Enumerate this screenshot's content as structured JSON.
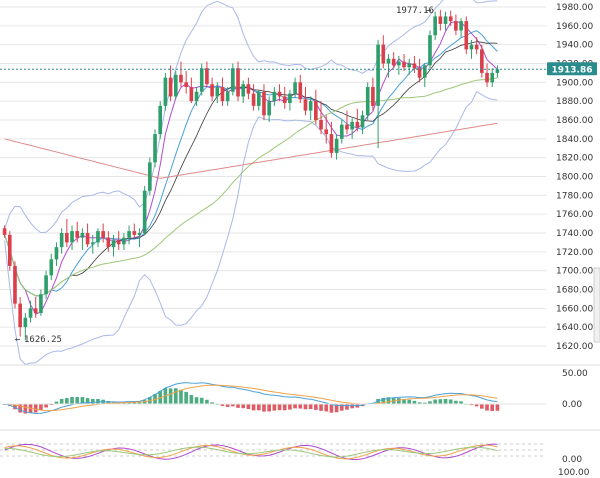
{
  "colors": {
    "up": "#2e9e6b",
    "down": "#d9404b",
    "bb": "#a9b8e8",
    "ma_fast": "#b04bd1",
    "ma_mid": "#4aa0d8",
    "ma_slow_green": "#9cc87a",
    "ma_slow_red": "#e08a8a",
    "price_line": "#2a8c8c",
    "grid": "#e6e6e6",
    "macd_line": "#4aa0d8",
    "signal_line": "#f0a24b",
    "osc_a": "#b04bd1",
    "osc_b": "#f0a24b",
    "osc_c": "#9cc87a"
  },
  "main_panel": {
    "current_price": "1913.86",
    "high_annotation": "1977.16",
    "low_annotation": "1626.25",
    "y_ticks": [
      "1980.00",
      "1960.00",
      "1940.00",
      "1920.00",
      "1900.00",
      "1880.00",
      "1860.00",
      "1840.00",
      "1820.00",
      "1800.00",
      "1780.00",
      "1760.00",
      "1740.00",
      "1720.00",
      "1700.00",
      "1680.00",
      "1660.00",
      "1640.00",
      "1620.00"
    ]
  },
  "macd_panel": {
    "y_ticks": [
      "50.00",
      "0.00"
    ]
  },
  "osc_panel": {
    "y_ticks": [
      "0.00",
      "100.00"
    ]
  },
  "chart_data": {
    "type": "candlestick",
    "ylim": [
      1610,
      1990
    ],
    "candles": [
      [
        1745,
        1748,
        1735,
        1738
      ],
      [
        1738,
        1742,
        1700,
        1705
      ],
      [
        1705,
        1710,
        1660,
        1665
      ],
      [
        1665,
        1672,
        1630,
        1640
      ],
      [
        1640,
        1655,
        1626,
        1650
      ],
      [
        1650,
        1668,
        1645,
        1660
      ],
      [
        1660,
        1672,
        1650,
        1655
      ],
      [
        1655,
        1680,
        1652,
        1675
      ],
      [
        1675,
        1700,
        1670,
        1695
      ],
      [
        1695,
        1718,
        1690,
        1712
      ],
      [
        1712,
        1730,
        1705,
        1725
      ],
      [
        1725,
        1745,
        1718,
        1740
      ],
      [
        1740,
        1755,
        1725,
        1730
      ],
      [
        1730,
        1748,
        1722,
        1742
      ],
      [
        1742,
        1752,
        1730,
        1735
      ],
      [
        1735,
        1745,
        1722,
        1740
      ],
      [
        1740,
        1750,
        1725,
        1728
      ],
      [
        1728,
        1738,
        1718,
        1730
      ],
      [
        1730,
        1745,
        1725,
        1742
      ],
      [
        1742,
        1750,
        1730,
        1735
      ],
      [
        1735,
        1742,
        1720,
        1725
      ],
      [
        1725,
        1738,
        1715,
        1732
      ],
      [
        1732,
        1742,
        1722,
        1728
      ],
      [
        1728,
        1740,
        1722,
        1735
      ],
      [
        1735,
        1748,
        1728,
        1742
      ],
      [
        1742,
        1750,
        1735,
        1738
      ],
      [
        1738,
        1745,
        1725,
        1740
      ],
      [
        1740,
        1790,
        1738,
        1785
      ],
      [
        1785,
        1820,
        1780,
        1815
      ],
      [
        1815,
        1850,
        1810,
        1845
      ],
      [
        1845,
        1880,
        1840,
        1875
      ],
      [
        1875,
        1910,
        1870,
        1905
      ],
      [
        1905,
        1918,
        1880,
        1885
      ],
      [
        1885,
        1912,
        1882,
        1908
      ],
      [
        1908,
        1922,
        1895,
        1900
      ],
      [
        1900,
        1912,
        1888,
        1895
      ],
      [
        1895,
        1905,
        1878,
        1880
      ],
      [
        1880,
        1895,
        1875,
        1890
      ],
      [
        1890,
        1920,
        1886,
        1915
      ],
      [
        1915,
        1922,
        1895,
        1898
      ],
      [
        1898,
        1905,
        1880,
        1885
      ],
      [
        1885,
        1900,
        1878,
        1895
      ],
      [
        1895,
        1905,
        1875,
        1880
      ],
      [
        1880,
        1895,
        1875,
        1890
      ],
      [
        1890,
        1920,
        1886,
        1915
      ],
      [
        1915,
        1922,
        1880,
        1885
      ],
      [
        1885,
        1902,
        1878,
        1898
      ],
      [
        1898,
        1905,
        1882,
        1888
      ],
      [
        1888,
        1898,
        1870,
        1875
      ],
      [
        1875,
        1892,
        1870,
        1890
      ],
      [
        1890,
        1898,
        1860,
        1865
      ],
      [
        1865,
        1885,
        1858,
        1880
      ],
      [
        1880,
        1895,
        1875,
        1890
      ],
      [
        1890,
        1898,
        1880,
        1885
      ],
      [
        1885,
        1895,
        1872,
        1878
      ],
      [
        1878,
        1892,
        1870,
        1888
      ],
      [
        1888,
        1905,
        1884,
        1900
      ],
      [
        1900,
        1908,
        1878,
        1882
      ],
      [
        1882,
        1895,
        1865,
        1870
      ],
      [
        1870,
        1885,
        1860,
        1880
      ],
      [
        1880,
        1892,
        1855,
        1860
      ],
      [
        1860,
        1880,
        1845,
        1850
      ],
      [
        1850,
        1865,
        1835,
        1845
      ],
      [
        1845,
        1858,
        1820,
        1825
      ],
      [
        1825,
        1845,
        1818,
        1840
      ],
      [
        1840,
        1860,
        1835,
        1855
      ],
      [
        1855,
        1870,
        1845,
        1850
      ],
      [
        1850,
        1862,
        1840,
        1858
      ],
      [
        1858,
        1872,
        1848,
        1852
      ],
      [
        1852,
        1870,
        1845,
        1865
      ],
      [
        1865,
        1900,
        1860,
        1895
      ],
      [
        1895,
        1905,
        1870,
        1875
      ],
      [
        1875,
        1945,
        1830,
        1940
      ],
      [
        1940,
        1950,
        1915,
        1920
      ],
      [
        1920,
        1930,
        1905,
        1925
      ],
      [
        1925,
        1932,
        1915,
        1918
      ],
      [
        1918,
        1928,
        1908,
        1922
      ],
      [
        1922,
        1930,
        1912,
        1916
      ],
      [
        1916,
        1925,
        1908,
        1920
      ],
      [
        1920,
        1928,
        1910,
        1915
      ],
      [
        1915,
        1925,
        1900,
        1905
      ],
      [
        1905,
        1920,
        1895,
        1918
      ],
      [
        1918,
        1955,
        1915,
        1950
      ],
      [
        1950,
        1975,
        1945,
        1970
      ],
      [
        1970,
        1977,
        1955,
        1962
      ],
      [
        1962,
        1975,
        1955,
        1970
      ],
      [
        1970,
        1976,
        1960,
        1965
      ],
      [
        1965,
        1972,
        1950,
        1955
      ],
      [
        1955,
        1968,
        1948,
        1965
      ],
      [
        1965,
        1970,
        1930,
        1935
      ],
      [
        1935,
        1945,
        1925,
        1940
      ],
      [
        1940,
        1948,
        1930,
        1935
      ],
      [
        1935,
        1940,
        1905,
        1910
      ],
      [
        1910,
        1920,
        1895,
        1900
      ],
      [
        1900,
        1915,
        1895,
        1910
      ],
      [
        1910,
        1918,
        1905,
        1913.86
      ]
    ]
  }
}
